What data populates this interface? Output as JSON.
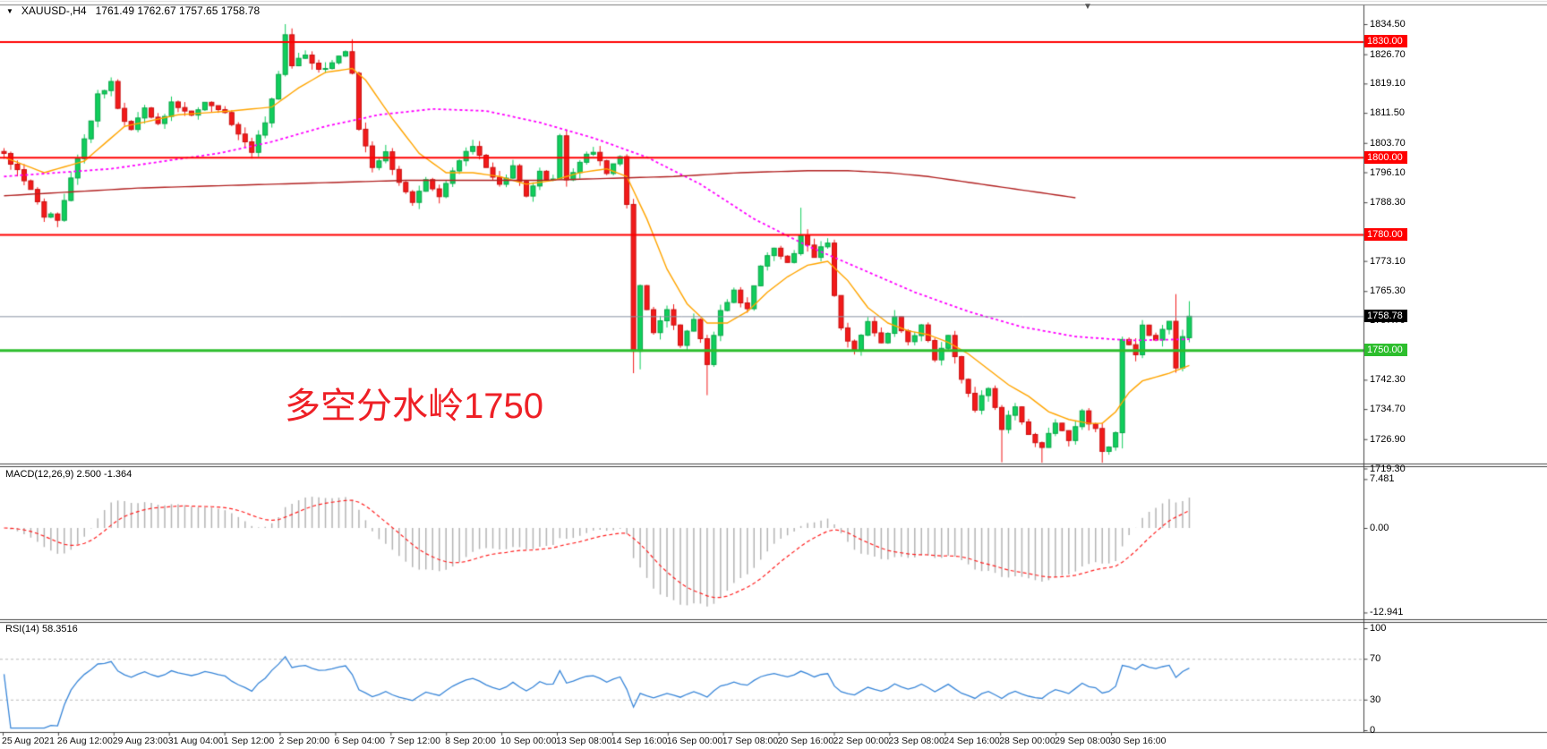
{
  "titlebar": {
    "dropdown_icon": "▼",
    "symbol": "XAUUSD-,H4",
    "quote_text": "1761.49 1762.67 1757.65 1758.78"
  },
  "scroll_marker_icon": "▼",
  "colors": {
    "candle_up": "#10ce5c",
    "candle_up_border": "#0aa548",
    "candle_down": "#f21a1a",
    "candle_down_border": "#c91111",
    "level_red": "#ff0000",
    "level_green": "#2dbe2d",
    "current_price_line": "#8a93a3",
    "current_badge_bg": "#000000",
    "ma_fast": "#ffa500",
    "ma_slow": "#ff00ff",
    "ma_long": "#b22222",
    "macd_hist": "#b4b4b4",
    "macd_signal": "#ff2222",
    "rsi_line": "#3a87d9",
    "rsi_band": "#bbbbbb",
    "annotation_red": "#ee2026",
    "border": "#444444"
  },
  "chart_data": {
    "type": "candlestick",
    "symbol": "XAUUSD-",
    "timeframe": "H4",
    "quote": {
      "open": 1761.49,
      "high": 1762.67,
      "low": 1757.65,
      "close": 1758.78
    },
    "y_axis": {
      "range": [
        1719.3,
        1834.5
      ],
      "tick_labels": [
        "1834.50",
        "1826.70",
        "1819.10",
        "1811.50",
        "1803.70",
        "1796.10",
        "1788.30",
        "1773.10",
        "1765.30",
        "1757.70",
        "1742.30",
        "1734.70",
        "1726.90",
        "1719.30"
      ]
    },
    "x_axis": {
      "labels": [
        "25 Aug 2021",
        "26 Aug 12:00",
        "29 Aug 23:00",
        "31 Aug 04:00",
        "1 Sep 12:00",
        "2 Sep 20:00",
        "6 Sep 04:00",
        "7 Sep 12:00",
        "8 Sep 20:00",
        "10 Sep 00:00",
        "13 Sep 08:00",
        "14 Sep 16:00",
        "16 Sep 00:00",
        "17 Sep 08:00",
        "20 Sep 16:00",
        "22 Sep 00:00",
        "23 Sep 08:00",
        "24 Sep 16:00",
        "28 Sep 00:00",
        "29 Sep 08:00",
        "30 Sep 16:00"
      ]
    },
    "horizontal_levels": [
      {
        "price": 1830.0,
        "label": "1830.00",
        "color": "#ff0000",
        "width": 2
      },
      {
        "price": 1800.0,
        "label": "1800.00",
        "color": "#ff0000",
        "width": 2
      },
      {
        "price": 1780.0,
        "label": "1780.00",
        "color": "#ff0000",
        "width": 2
      },
      {
        "price": 1750.0,
        "label": "1750.00",
        "color": "#2dbe2d",
        "width": 3
      }
    ],
    "current_price": {
      "value": 1758.78,
      "label": "1758.78"
    },
    "annotation": {
      "text": "多空分水岭1750"
    },
    "candles": {
      "count": 178,
      "anchors": [
        [
          0,
          1801
        ],
        [
          2,
          1796
        ],
        [
          4,
          1791
        ],
        [
          6,
          1785
        ],
        [
          8,
          1784
        ],
        [
          10,
          1794
        ],
        [
          12,
          1804
        ],
        [
          14,
          1816
        ],
        [
          16,
          1820
        ],
        [
          17,
          1812
        ],
        [
          19,
          1807
        ],
        [
          21,
          1813
        ],
        [
          23,
          1808
        ],
        [
          25,
          1814
        ],
        [
          28,
          1811
        ],
        [
          30,
          1815
        ],
        [
          33,
          1811
        ],
        [
          35,
          1806
        ],
        [
          37,
          1802
        ],
        [
          39,
          1809
        ],
        [
          41,
          1822
        ],
        [
          42,
          1832
        ],
        [
          43,
          1824
        ],
        [
          45,
          1827
        ],
        [
          47,
          1822
        ],
        [
          49,
          1825
        ],
        [
          51,
          1828
        ],
        [
          52,
          1821
        ],
        [
          53,
          1808
        ],
        [
          55,
          1797
        ],
        [
          57,
          1801
        ],
        [
          59,
          1794
        ],
        [
          61,
          1788
        ],
        [
          63,
          1794
        ],
        [
          65,
          1790
        ],
        [
          67,
          1797
        ],
        [
          70,
          1803
        ],
        [
          72,
          1798
        ],
        [
          74,
          1793
        ],
        [
          76,
          1797
        ],
        [
          78,
          1790
        ],
        [
          80,
          1796
        ],
        [
          82,
          1794
        ],
        [
          83,
          1806
        ],
        [
          84,
          1794
        ],
        [
          86,
          1799
        ],
        [
          88,
          1802
        ],
        [
          90,
          1796
        ],
        [
          92,
          1800
        ],
        [
          93,
          1787
        ],
        [
          94,
          1750
        ],
        [
          95,
          1766
        ],
        [
          97,
          1754
        ],
        [
          99,
          1761
        ],
        [
          101,
          1752
        ],
        [
          103,
          1758
        ],
        [
          105,
          1747
        ],
        [
          107,
          1760
        ],
        [
          109,
          1765
        ],
        [
          111,
          1760
        ],
        [
          113,
          1772
        ],
        [
          115,
          1777
        ],
        [
          117,
          1772
        ],
        [
          119,
          1779
        ],
        [
          121,
          1774
        ],
        [
          123,
          1778
        ],
        [
          124,
          1764
        ],
        [
          125,
          1755
        ],
        [
          127,
          1750
        ],
        [
          129,
          1757
        ],
        [
          131,
          1752
        ],
        [
          133,
          1758
        ],
        [
          135,
          1752
        ],
        [
          137,
          1756
        ],
        [
          139,
          1748
        ],
        [
          141,
          1753
        ],
        [
          143,
          1742
        ],
        [
          145,
          1735
        ],
        [
          147,
          1740
        ],
        [
          149,
          1730
        ],
        [
          151,
          1736
        ],
        [
          153,
          1728
        ],
        [
          155,
          1725
        ],
        [
          157,
          1731
        ],
        [
          159,
          1727
        ],
        [
          161,
          1734
        ],
        [
          163,
          1729
        ],
        [
          164,
          1723
        ],
        [
          166,
          1728
        ],
        [
          167,
          1753
        ],
        [
          169,
          1749
        ],
        [
          170,
          1756
        ],
        [
          172,
          1753
        ],
        [
          174,
          1757
        ],
        [
          175,
          1746
        ],
        [
          176,
          1753
        ],
        [
          177,
          1758.78
        ]
      ],
      "specials": {
        "42": {
          "h": 1834.5
        },
        "52": {
          "h": 1830.6
        },
        "94": {
          "l": 1744.0
        },
        "95": {
          "l": 1745.0
        },
        "105": {
          "l": 1738.3
        },
        "119": {
          "h": 1786.9
        },
        "149": {
          "l": 1720.9
        },
        "155": {
          "l": 1719.9
        },
        "164": {
          "l": 1720.6
        },
        "167": {
          "l": 1724.5
        },
        "175": {
          "h": 1764.5
        },
        "177": {
          "o": 1753.2,
          "h": 1762.67,
          "l": 1752.0,
          "c": 1758.78
        }
      }
    },
    "moving_averages": [
      {
        "name": "ma-fast",
        "color": "#ffa500",
        "style": "solid",
        "points": [
          [
            0,
            1800
          ],
          [
            6,
            1796
          ],
          [
            12,
            1799
          ],
          [
            18,
            1808
          ],
          [
            26,
            1811
          ],
          [
            34,
            1812
          ],
          [
            40,
            1813
          ],
          [
            44,
            1818
          ],
          [
            48,
            1822
          ],
          [
            52,
            1823
          ],
          [
            54,
            1820
          ],
          [
            58,
            1810
          ],
          [
            62,
            1801
          ],
          [
            66,
            1796
          ],
          [
            70,
            1796
          ],
          [
            74,
            1795
          ],
          [
            78,
            1793
          ],
          [
            82,
            1794
          ],
          [
            86,
            1796
          ],
          [
            90,
            1797
          ],
          [
            93,
            1795
          ],
          [
            96,
            1784
          ],
          [
            99,
            1771
          ],
          [
            102,
            1762
          ],
          [
            105,
            1757
          ],
          [
            108,
            1757
          ],
          [
            111,
            1760
          ],
          [
            114,
            1765
          ],
          [
            117,
            1769
          ],
          [
            120,
            1772
          ],
          [
            123,
            1773
          ],
          [
            126,
            1768
          ],
          [
            129,
            1761
          ],
          [
            132,
            1757
          ],
          [
            135,
            1755
          ],
          [
            138,
            1754
          ],
          [
            141,
            1752
          ],
          [
            144,
            1749
          ],
          [
            147,
            1745
          ],
          [
            150,
            1741
          ],
          [
            153,
            1738
          ],
          [
            156,
            1734
          ],
          [
            159,
            1732
          ],
          [
            162,
            1731
          ],
          [
            164,
            1731
          ],
          [
            166,
            1734
          ],
          [
            168,
            1739
          ],
          [
            170,
            1742
          ],
          [
            172,
            1743
          ],
          [
            174,
            1744
          ],
          [
            177,
            1746
          ]
        ]
      },
      {
        "name": "ma-slow",
        "color": "#ff00ff",
        "style": "dashed",
        "points": [
          [
            0,
            1795
          ],
          [
            8,
            1796
          ],
          [
            16,
            1797
          ],
          [
            24,
            1799
          ],
          [
            32,
            1801
          ],
          [
            40,
            1804
          ],
          [
            48,
            1808
          ],
          [
            56,
            1811
          ],
          [
            64,
            1812.5
          ],
          [
            72,
            1812
          ],
          [
            80,
            1809
          ],
          [
            88,
            1805
          ],
          [
            96,
            1800
          ],
          [
            104,
            1793
          ],
          [
            112,
            1784
          ],
          [
            120,
            1777
          ],
          [
            128,
            1771
          ],
          [
            136,
            1765
          ],
          [
            144,
            1760
          ],
          [
            152,
            1756
          ],
          [
            160,
            1753.5
          ],
          [
            168,
            1752.5
          ],
          [
            177,
            1752.8
          ]
        ]
      },
      {
        "name": "ma-long",
        "color": "#b22222",
        "style": "solid",
        "points": [
          [
            0,
            1790
          ],
          [
            10,
            1791
          ],
          [
            20,
            1792
          ],
          [
            30,
            1792.5
          ],
          [
            40,
            1793
          ],
          [
            50,
            1793.5
          ],
          [
            60,
            1794
          ],
          [
            70,
            1794
          ],
          [
            80,
            1794
          ],
          [
            90,
            1794.5
          ],
          [
            100,
            1795
          ],
          [
            110,
            1796
          ],
          [
            120,
            1796.5
          ],
          [
            126,
            1796.5
          ],
          [
            132,
            1796
          ],
          [
            138,
            1795
          ],
          [
            144,
            1793.5
          ],
          [
            150,
            1792
          ],
          [
            156,
            1790.5
          ],
          [
            160,
            1789.5
          ]
        ]
      }
    ],
    "indicators": {
      "macd": {
        "label": "MACD(12,26,9) 2.500 -1.364",
        "params": "12,26,9",
        "main_value": 2.5,
        "signal_value": -1.364,
        "axis_tick_labels": [
          "7.481",
          "0.00",
          "-12.941"
        ],
        "axis_tick_values": [
          7.481,
          0,
          -12.941
        ]
      },
      "rsi": {
        "label": "RSI(14) 58.3516",
        "period": 14,
        "value": 58.3516,
        "axis_tick_labels": [
          "100",
          "70",
          "30",
          "0"
        ],
        "axis_tick_values": [
          100,
          70,
          30,
          0
        ],
        "bands": [
          70,
          30
        ]
      }
    }
  }
}
